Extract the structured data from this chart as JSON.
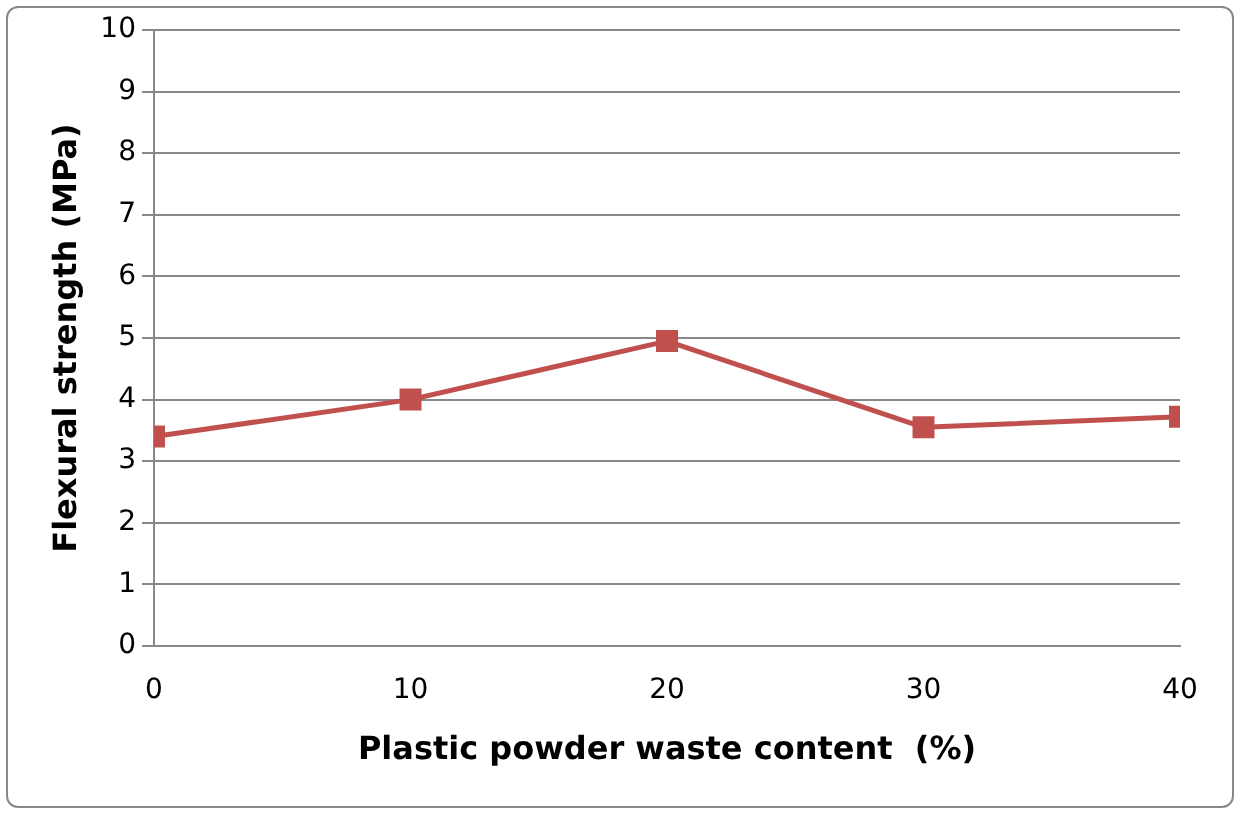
{
  "chart_data": {
    "type": "line",
    "xlabel": "Plastic powder waste content  (%)",
    "ylabel": "Flexural strength (MPa)",
    "x": [
      0,
      10,
      20,
      30,
      40
    ],
    "series": [
      {
        "color": "#c0504d",
        "values": [
          3.4,
          4.0,
          4.95,
          3.55,
          3.72
        ]
      }
    ],
    "xlim": [
      0,
      40
    ],
    "xticks": [
      0,
      10,
      20,
      30,
      40
    ],
    "ylim": [
      0,
      10
    ],
    "yticks": [
      0,
      1,
      2,
      3,
      4,
      5,
      6,
      7,
      8,
      9,
      10
    ],
    "grid": "y",
    "legend": false,
    "marker": "square",
    "line_style": "solid"
  }
}
